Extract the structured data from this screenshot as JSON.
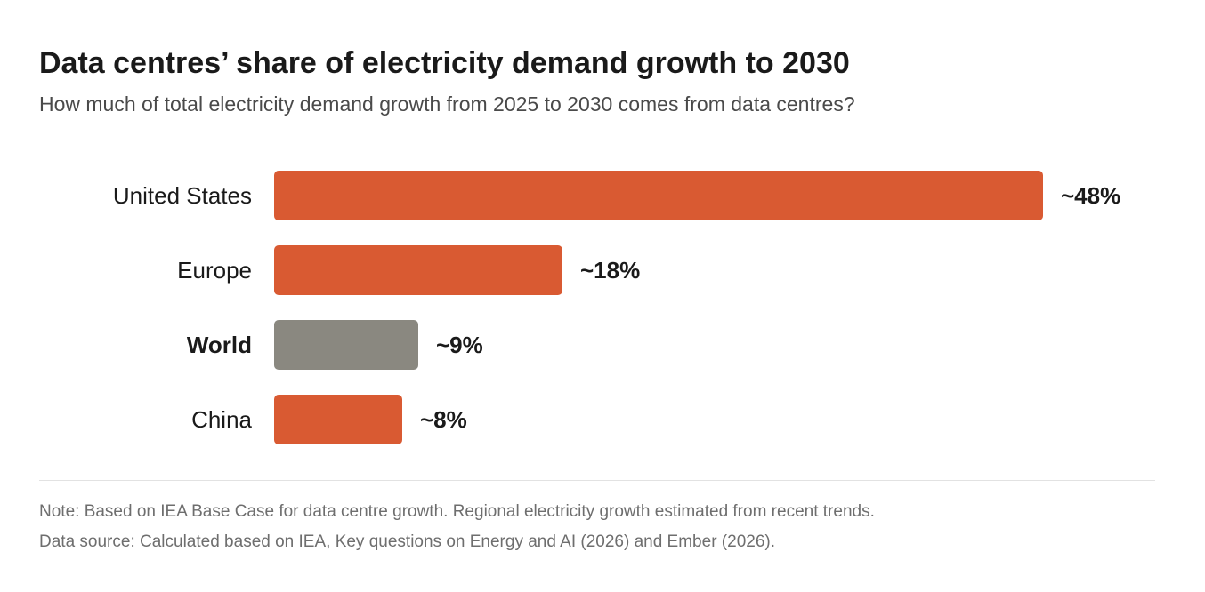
{
  "header": {
    "title": "Data centres’ share of electricity demand growth to 2030",
    "subtitle": "How much of total electricity demand growth from 2025 to 2030 comes from data centres?"
  },
  "footer": {
    "note": "Note: Based on IEA Base Case for data centre growth. Regional electricity growth estimated from recent trends.",
    "source": "Data source: Calculated based on IEA, Key questions on Energy and AI (2026) and Ember (2026)."
  },
  "colors": {
    "highlight": "#d95a32",
    "world": "#8a8880"
  },
  "chart_data": {
    "type": "bar",
    "orientation": "horizontal",
    "title": "Data centres’ share of electricity demand growth to 2030",
    "subtitle": "How much of total electricity demand growth from 2025 to 2030 comes from data centres?",
    "categories": [
      "United States",
      "Europe",
      "World",
      "China"
    ],
    "values": [
      48,
      18,
      9,
      8
    ],
    "data_labels": [
      "~48%",
      "~18%",
      "~9%",
      "~8%"
    ],
    "bar_colors": [
      "#d95a32",
      "#d95a32",
      "#8a8880",
      "#d95a32"
    ],
    "emphasized_category": "World",
    "xlabel": "",
    "ylabel": "",
    "unit": "%",
    "grid": false,
    "legend": "none"
  }
}
